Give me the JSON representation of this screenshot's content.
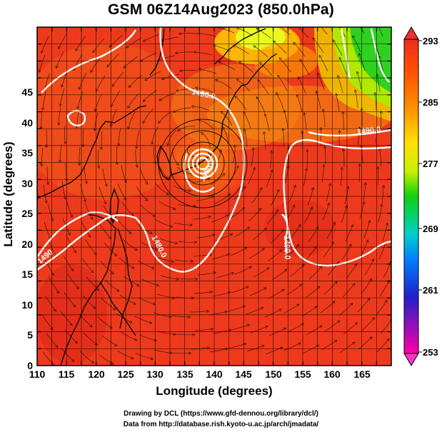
{
  "title": "GSM 06Z14Aug2023 (850.0hPa)",
  "axes": {
    "xlabel": "Longitude (degrees)",
    "ylabel": "Latitude  (degrees)",
    "x_ticks": [
      "110",
      "115",
      "120",
      "125",
      "130",
      "135",
      "140",
      "145",
      "150",
      "155",
      "160",
      "165"
    ],
    "y_ticks": [
      "0",
      "5",
      "10",
      "15",
      "20",
      "25",
      "30",
      "35",
      "40",
      "45"
    ]
  },
  "colorbar": {
    "labels": [
      "293",
      "285",
      "277",
      "269",
      "261",
      "253"
    ],
    "colors": [
      "#ff00aa",
      "#2020c8",
      "#0080ff",
      "#00d0c8",
      "#10d010",
      "#c8f000",
      "#ffe000",
      "#ff9000",
      "#ff5000",
      "#ee2a20"
    ]
  },
  "contours": [
    {
      "label": "1490.0"
    },
    {
      "label": "1490.0"
    },
    {
      "label": "1490.0"
    },
    {
      "label": "1480.0"
    },
    {
      "label": "1480.0"
    },
    {
      "label": "1490"
    }
  ],
  "credits": {
    "line1": "Drawing by DCL (https://www.gfd-dennou.org/library/dcl/)",
    "line2": "Data from http://database.rish.kyoto-u.ac.jp/arch/jmadata/"
  },
  "chart_data": {
    "type": "heatmap",
    "title": "GSM 06Z14Aug2023 (850.0hPa)",
    "xlabel": "Longitude (degrees)",
    "ylabel": "Latitude  (degrees)",
    "xlim": [
      110,
      170
    ],
    "ylim": [
      0,
      50
    ],
    "colorbar_range": [
      253,
      293
    ],
    "colorbar_ticks": [
      293,
      285,
      277,
      269,
      261,
      253
    ],
    "contour_values": [
      1480.0,
      1490.0
    ],
    "grid": true,
    "overlays": [
      "streamlines",
      "geopotential height contours",
      "coastlines"
    ],
    "typhoon_center": {
      "lon": 136.5,
      "lat": 32.0
    }
  }
}
